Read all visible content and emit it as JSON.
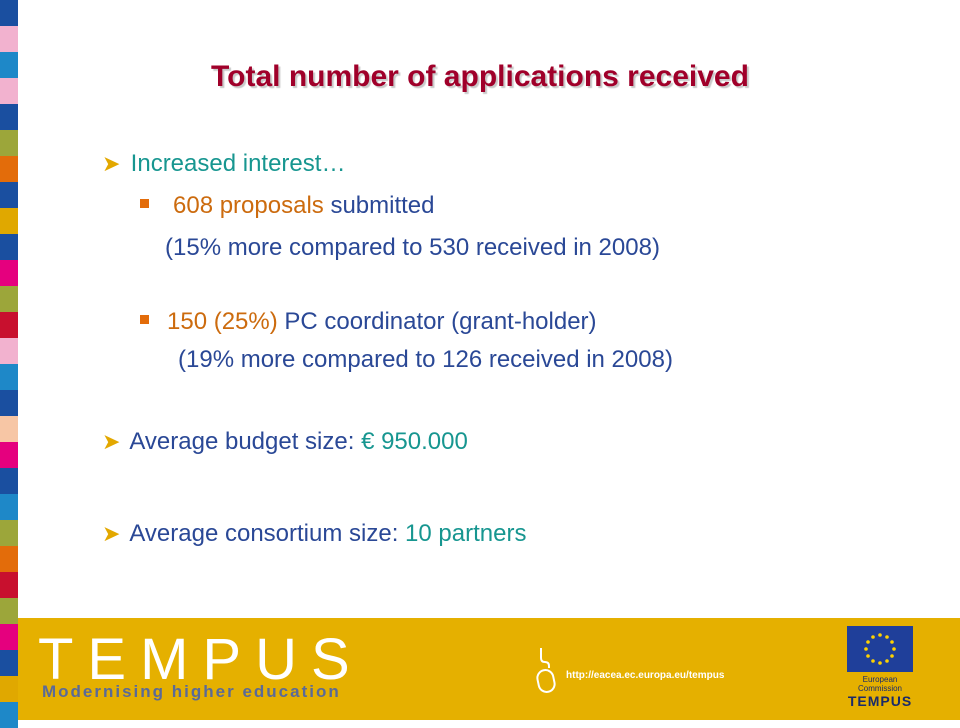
{
  "title": "Total number of applications received",
  "bullets": {
    "b1": {
      "text": "Increased interest…"
    },
    "b1_1": {
      "highlight": "608 proposals",
      "text": " submitted",
      "continuation": "(15% more compared to 530 received in 2008)"
    },
    "b1_2": {
      "highlight": "150 (25%)",
      "text": " PC coordinator (grant-holder)",
      "continuation": "(19% more compared to 126 received in 2008)"
    },
    "b2": {
      "label": "Average budget size: ",
      "value": "€ 950.000"
    },
    "b3": {
      "label": "Average consortium size: ",
      "value": "10 partners"
    }
  },
  "footer": {
    "logo_text": "TEMPUS",
    "tagline": "Modernising higher education",
    "url": "http://eacea.ec.europa.eu/tempus",
    "ec_label": "European Commission",
    "ec_program": "TEMPUS"
  },
  "colors": {
    "title": "#a0002a",
    "footer_bg": "#e5b000",
    "arrow": "#e3a800",
    "teal": "#179690",
    "blue": "#2a4896",
    "orange": "#cc6b0e"
  }
}
